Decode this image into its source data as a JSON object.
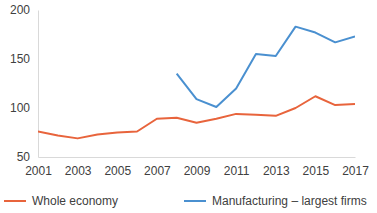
{
  "chart_data": {
    "type": "line",
    "x": [
      2001,
      2002,
      2003,
      2004,
      2005,
      2006,
      2007,
      2008,
      2009,
      2010,
      2011,
      2012,
      2013,
      2014,
      2015,
      2016,
      2017
    ],
    "xlim": [
      2001,
      2017
    ],
    "xticks": [
      2001,
      2003,
      2005,
      2007,
      2009,
      2011,
      2013,
      2015,
      2017
    ],
    "ylim": [
      50,
      200
    ],
    "yticks": [
      50,
      100,
      150,
      200
    ],
    "grid": false,
    "legend": "bottom",
    "series": [
      {
        "name": "Whole economy",
        "color": "#e8643c",
        "values": [
          76,
          72,
          69,
          73,
          75,
          76,
          89,
          90,
          85,
          89,
          94,
          93,
          92,
          100,
          112,
          103,
          104
        ]
      },
      {
        "name": "Manufacturing – largest firms",
        "color": "#4a90d0",
        "values": [
          null,
          null,
          null,
          null,
          null,
          null,
          null,
          135,
          109,
          101,
          120,
          155,
          153,
          183,
          177,
          167,
          173
        ]
      }
    ]
  }
}
